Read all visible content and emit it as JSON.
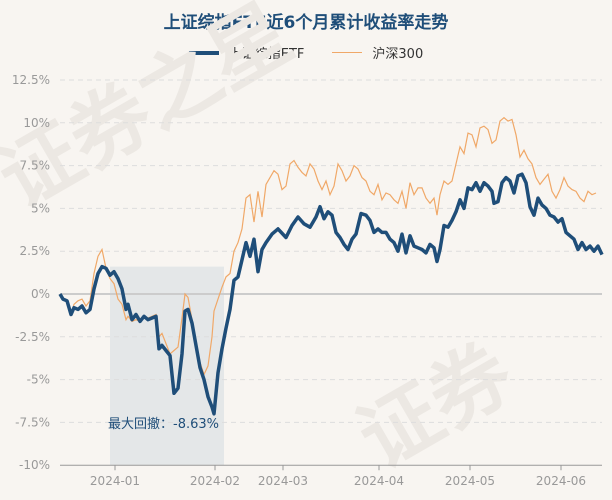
{
  "chart_data": {
    "type": "line",
    "title": "上证综指ETF近6个月累计收益率走势",
    "xlabel": "",
    "ylabel": "",
    "ylim": [
      -10,
      12.5
    ],
    "yticks": [
      "12.5%",
      "10%",
      "7.5%",
      "5%",
      "2.5%",
      "0%",
      "-2.5%",
      "-5%",
      "-7.5%",
      "-10%"
    ],
    "xticks": [
      "2024-01",
      "2024-02",
      "2024-03",
      "2024-04",
      "2024-05",
      "2024-06"
    ],
    "grid": true,
    "legend_position": "top",
    "annotation": "最大回撤：-8.63%",
    "series": [
      {
        "name": "上证综指ETF",
        "color": "#1f4e79",
        "points": [
          [
            60,
            0
          ],
          [
            63,
            -0.3
          ],
          [
            67,
            -0.4
          ],
          [
            71,
            -1.2
          ],
          [
            74,
            -0.8
          ],
          [
            78,
            -0.9
          ],
          [
            82,
            -0.7
          ],
          [
            86,
            -1.1
          ],
          [
            90,
            -0.9
          ],
          [
            94,
            0.3
          ],
          [
            98,
            1.2
          ],
          [
            102,
            1.6
          ],
          [
            106,
            1.5
          ],
          [
            110,
            1.1
          ],
          [
            114,
            1.3
          ],
          [
            118,
            0.9
          ],
          [
            122,
            0.3
          ],
          [
            126,
            -0.9
          ],
          [
            128,
            -0.6
          ],
          [
            132,
            -1.5
          ],
          [
            136,
            -1.2
          ],
          [
            140,
            -1.6
          ],
          [
            144,
            -1.3
          ],
          [
            148,
            -1.5
          ],
          [
            152,
            -1.4
          ],
          [
            156,
            -1.3
          ],
          [
            159,
            -3.2
          ],
          [
            162,
            -3.0
          ],
          [
            166,
            -3.3
          ],
          [
            170,
            -3.6
          ],
          [
            174,
            -5.8
          ],
          [
            178,
            -5.5
          ],
          [
            182,
            -3.5
          ],
          [
            185,
            -1.0
          ],
          [
            188,
            -0.9
          ],
          [
            192,
            -1.7
          ],
          [
            196,
            -3.0
          ],
          [
            200,
            -4.3
          ],
          [
            204,
            -5.0
          ],
          [
            208,
            -6.0
          ],
          [
            212,
            -6.6
          ],
          [
            214,
            -7.0
          ],
          [
            218,
            -4.6
          ],
          [
            222,
            -3.2
          ],
          [
            226,
            -2.0
          ],
          [
            230,
            -0.9
          ],
          [
            234,
            0.8
          ],
          [
            238,
            1.0
          ],
          [
            242,
            2.0
          ],
          [
            246,
            3.0
          ],
          [
            250,
            2.2
          ],
          [
            254,
            3.2
          ],
          [
            258,
            1.3
          ],
          [
            262,
            2.6
          ],
          [
            266,
            3.0
          ],
          [
            272,
            3.5
          ],
          [
            278,
            3.8
          ],
          [
            286,
            3.3
          ],
          [
            292,
            4.0
          ],
          [
            298,
            4.5
          ],
          [
            304,
            4.1
          ],
          [
            310,
            3.9
          ],
          [
            316,
            4.5
          ],
          [
            320,
            5.1
          ],
          [
            324,
            4.4
          ],
          [
            328,
            4.8
          ],
          [
            332,
            4.6
          ],
          [
            336,
            3.6
          ],
          [
            340,
            3.3
          ],
          [
            344,
            2.9
          ],
          [
            348,
            2.6
          ],
          [
            352,
            3.2
          ],
          [
            356,
            3.5
          ],
          [
            361,
            4.7
          ],
          [
            366,
            4.6
          ],
          [
            370,
            4.3
          ],
          [
            374,
            3.6
          ],
          [
            378,
            3.8
          ],
          [
            382,
            3.6
          ],
          [
            386,
            3.6
          ],
          [
            390,
            3.2
          ],
          [
            394,
            3.0
          ],
          [
            398,
            2.5
          ],
          [
            402,
            3.5
          ],
          [
            406,
            2.4
          ],
          [
            410,
            3.4
          ],
          [
            414,
            2.8
          ],
          [
            418,
            2.7
          ],
          [
            422,
            2.6
          ],
          [
            426,
            2.4
          ],
          [
            430,
            2.9
          ],
          [
            434,
            2.7
          ],
          [
            437,
            1.9
          ],
          [
            440,
            2.6
          ],
          [
            444,
            4.0
          ],
          [
            448,
            3.9
          ],
          [
            452,
            4.3
          ],
          [
            456,
            4.8
          ],
          [
            460,
            5.5
          ],
          [
            464,
            5.0
          ],
          [
            468,
            6.2
          ],
          [
            472,
            6.1
          ],
          [
            476,
            6.5
          ],
          [
            480,
            6.0
          ],
          [
            484,
            6.5
          ],
          [
            488,
            6.3
          ],
          [
            492,
            6.0
          ],
          [
            494,
            5.3
          ],
          [
            498,
            5.4
          ],
          [
            502,
            6.5
          ],
          [
            506,
            6.8
          ],
          [
            510,
            6.6
          ],
          [
            514,
            5.9
          ],
          [
            518,
            6.9
          ],
          [
            522,
            7.0
          ],
          [
            526,
            6.5
          ],
          [
            530,
            5.1
          ],
          [
            534,
            4.6
          ],
          [
            538,
            5.6
          ],
          [
            542,
            5.2
          ],
          [
            546,
            5.0
          ],
          [
            550,
            4.6
          ],
          [
            554,
            4.5
          ],
          [
            558,
            4.2
          ],
          [
            562,
            4.4
          ],
          [
            566,
            3.6
          ],
          [
            570,
            3.4
          ],
          [
            574,
            3.2
          ],
          [
            578,
            2.6
          ],
          [
            582,
            3.0
          ],
          [
            586,
            2.6
          ],
          [
            590,
            2.8
          ],
          [
            594,
            2.5
          ],
          [
            598,
            2.8
          ],
          [
            602,
            2.3
          ]
        ]
      },
      {
        "name": "沪深300",
        "color": "#f0a868",
        "points": [
          [
            60,
            0
          ],
          [
            63,
            -0.3
          ],
          [
            67,
            -0.4
          ],
          [
            71,
            -1.2
          ],
          [
            74,
            -0.6
          ],
          [
            78,
            -0.4
          ],
          [
            82,
            -0.3
          ],
          [
            86,
            -0.7
          ],
          [
            90,
            -0.4
          ],
          [
            94,
            1.2
          ],
          [
            98,
            2.2
          ],
          [
            102,
            2.6
          ],
          [
            106,
            1.5
          ],
          [
            110,
            0.9
          ],
          [
            114,
            0.6
          ],
          [
            118,
            -0.3
          ],
          [
            122,
            -0.6
          ],
          [
            126,
            -1.5
          ],
          [
            128,
            -1.3
          ],
          [
            132,
            -1.6
          ],
          [
            136,
            -1.5
          ],
          [
            140,
            -1.6
          ],
          [
            144,
            -1.4
          ],
          [
            148,
            -1.4
          ],
          [
            152,
            -1.3
          ],
          [
            156,
            -1.2
          ],
          [
            159,
            -2.5
          ],
          [
            162,
            -2.3
          ],
          [
            166,
            -2.9
          ],
          [
            170,
            -3.5
          ],
          [
            174,
            -3.3
          ],
          [
            178,
            -3.1
          ],
          [
            182,
            -1.4
          ],
          [
            185,
            0.0
          ],
          [
            188,
            -0.2
          ],
          [
            192,
            -1.5
          ],
          [
            196,
            -2.9
          ],
          [
            200,
            -4.0
          ],
          [
            204,
            -4.7
          ],
          [
            208,
            -4.2
          ],
          [
            212,
            -2.5
          ],
          [
            214,
            -1.0
          ],
          [
            218,
            -0.3
          ],
          [
            222,
            0.4
          ],
          [
            226,
            1.0
          ],
          [
            230,
            1.2
          ],
          [
            234,
            2.5
          ],
          [
            238,
            3.0
          ],
          [
            242,
            3.8
          ],
          [
            246,
            5.6
          ],
          [
            250,
            5.8
          ],
          [
            254,
            4.2
          ],
          [
            258,
            6.0
          ],
          [
            262,
            4.5
          ],
          [
            266,
            6.4
          ],
          [
            270,
            6.8
          ],
          [
            274,
            7.2
          ],
          [
            278,
            7.0
          ],
          [
            282,
            6.1
          ],
          [
            286,
            6.3
          ],
          [
            290,
            7.6
          ],
          [
            294,
            7.8
          ],
          [
            298,
            7.4
          ],
          [
            302,
            7.1
          ],
          [
            306,
            6.9
          ],
          [
            310,
            7.6
          ],
          [
            314,
            7.3
          ],
          [
            318,
            6.6
          ],
          [
            322,
            6.1
          ],
          [
            326,
            6.6
          ],
          [
            330,
            5.8
          ],
          [
            334,
            6.3
          ],
          [
            338,
            7.6
          ],
          [
            342,
            7.2
          ],
          [
            346,
            6.6
          ],
          [
            350,
            6.9
          ],
          [
            354,
            7.5
          ],
          [
            358,
            7.3
          ],
          [
            362,
            6.8
          ],
          [
            366,
            6.6
          ],
          [
            370,
            6.0
          ],
          [
            374,
            5.8
          ],
          [
            378,
            6.4
          ],
          [
            382,
            5.5
          ],
          [
            386,
            5.9
          ],
          [
            390,
            5.8
          ],
          [
            394,
            5.5
          ],
          [
            398,
            5.3
          ],
          [
            402,
            6.0
          ],
          [
            406,
            5.0
          ],
          [
            410,
            6.5
          ],
          [
            414,
            5.8
          ],
          [
            418,
            6.2
          ],
          [
            422,
            6.2
          ],
          [
            426,
            5.6
          ],
          [
            430,
            5.3
          ],
          [
            434,
            5.6
          ],
          [
            437,
            4.6
          ],
          [
            440,
            5.8
          ],
          [
            444,
            6.6
          ],
          [
            448,
            6.4
          ],
          [
            452,
            6.6
          ],
          [
            456,
            7.6
          ],
          [
            460,
            8.6
          ],
          [
            464,
            8.2
          ],
          [
            468,
            9.4
          ],
          [
            472,
            9.3
          ],
          [
            476,
            8.6
          ],
          [
            480,
            9.7
          ],
          [
            484,
            9.8
          ],
          [
            488,
            9.6
          ],
          [
            492,
            8.8
          ],
          [
            496,
            9.0
          ],
          [
            500,
            10.1
          ],
          [
            504,
            10.3
          ],
          [
            508,
            10.1
          ],
          [
            512,
            10.2
          ],
          [
            516,
            9.3
          ],
          [
            520,
            8.0
          ],
          [
            524,
            8.4
          ],
          [
            528,
            7.9
          ],
          [
            532,
            7.6
          ],
          [
            536,
            6.8
          ],
          [
            540,
            6.4
          ],
          [
            544,
            6.7
          ],
          [
            548,
            7.0
          ],
          [
            552,
            6.0
          ],
          [
            556,
            5.6
          ],
          [
            560,
            6.1
          ],
          [
            564,
            6.8
          ],
          [
            568,
            6.3
          ],
          [
            572,
            6.1
          ],
          [
            576,
            6.0
          ],
          [
            580,
            5.6
          ],
          [
            584,
            5.4
          ],
          [
            588,
            6.0
          ],
          [
            592,
            5.8
          ],
          [
            596,
            5.9
          ]
        ]
      }
    ]
  },
  "legend": [
    {
      "label": "上证综指ETF"
    },
    {
      "label": "沪深300"
    }
  ],
  "drawdown": {
    "label": "最大回撤：-8.63%",
    "x_start": 110,
    "x_end": 224
  },
  "watermark": "证券之星"
}
